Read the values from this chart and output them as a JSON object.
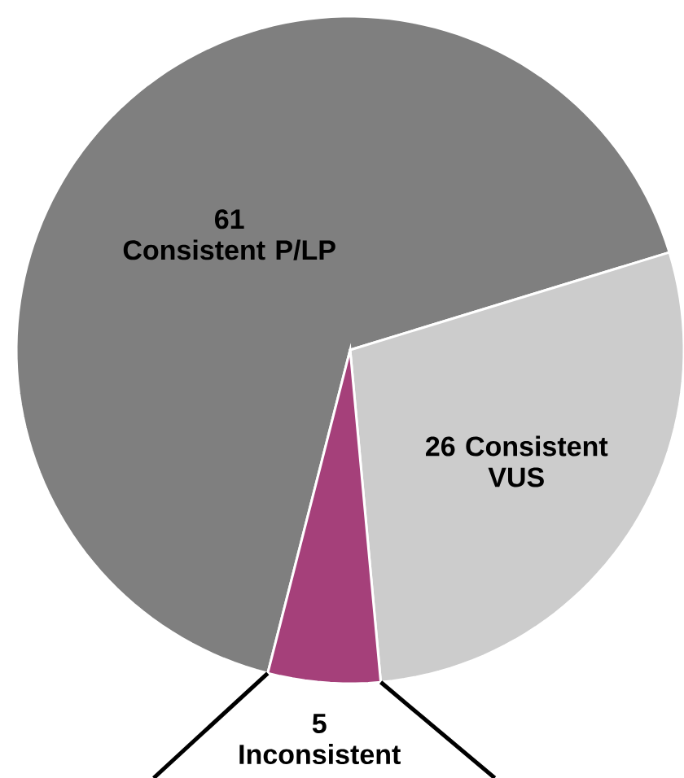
{
  "chart_data": {
    "type": "pie",
    "categories": [
      "Consistent P/LP",
      "Consistent VUS",
      "Inconsistent"
    ],
    "values": [
      61,
      26,
      5
    ],
    "colors": [
      "#7f7f7f",
      "#cccccc",
      "#a5407a"
    ],
    "data_labels": true
  }
}
